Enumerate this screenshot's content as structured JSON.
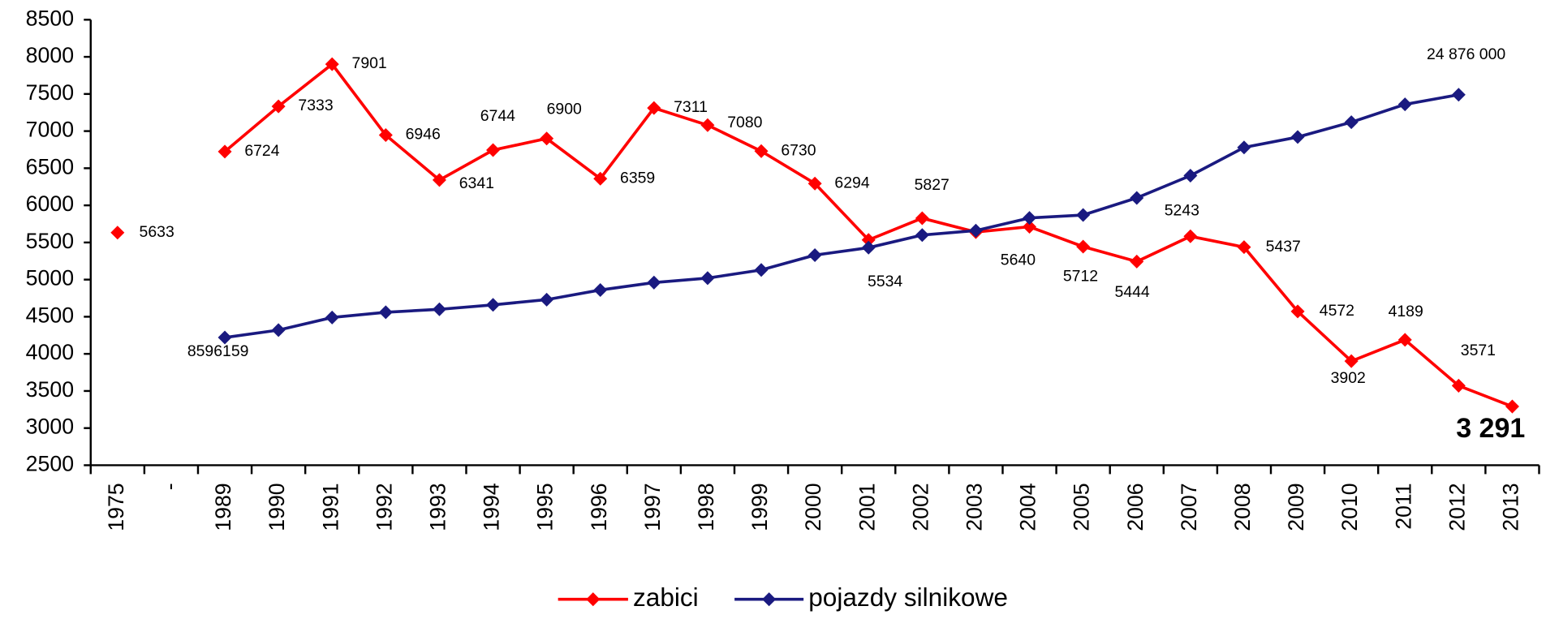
{
  "chart_data": {
    "type": "line",
    "categories": [
      "1975",
      "-",
      "1989",
      "1990",
      "1991",
      "1992",
      "1993",
      "1994",
      "1995",
      "1996",
      "1997",
      "1998",
      "1999",
      "2000",
      "2001",
      "2002",
      "2003",
      "2004",
      "2005",
      "2006",
      "2007",
      "2008",
      "2009",
      "2010",
      "2011",
      "2012",
      "2013"
    ],
    "series": [
      {
        "name": "zabici",
        "color": "#ff0000",
        "values": [
          5633,
          null,
          6724,
          7333,
          7901,
          6946,
          6341,
          6744,
          6900,
          6359,
          7311,
          7080,
          6730,
          6294,
          5534,
          5827,
          5640,
          5712,
          5444,
          5243,
          5583,
          5437,
          4572,
          3902,
          4189,
          3571,
          3291
        ],
        "value_labels": [
          "5633",
          null,
          "6724",
          "7333",
          "7901",
          "6946",
          "6341",
          "6744",
          "6900",
          "6359",
          "7311",
          "7080",
          "6730",
          "6294",
          "5534",
          "5827",
          "5640",
          "5712",
          "5444",
          "5243",
          null,
          "5437",
          "4572",
          "3902",
          "4189",
          "3571",
          "3 291"
        ]
      },
      {
        "name": "pojazdy silnikowe",
        "color": "#1a1a80",
        "values": [
          null,
          null,
          4220,
          4320,
          4490,
          4560,
          4600,
          4660,
          4730,
          4860,
          4960,
          5020,
          5130,
          5330,
          5430,
          5600,
          5660,
          5830,
          5870,
          6100,
          6400,
          6780,
          6920,
          7120,
          7360,
          7490,
          null
        ]
      }
    ],
    "annotations": [
      {
        "text": "8596159"
      },
      {
        "text": "24 876 000"
      }
    ],
    "ylim": [
      2500,
      8500
    ],
    "yticks": [
      2500,
      3000,
      3500,
      4000,
      4500,
      5000,
      5500,
      6000,
      6500,
      7000,
      7500,
      8000,
      8500
    ],
    "legend": "bottom"
  }
}
